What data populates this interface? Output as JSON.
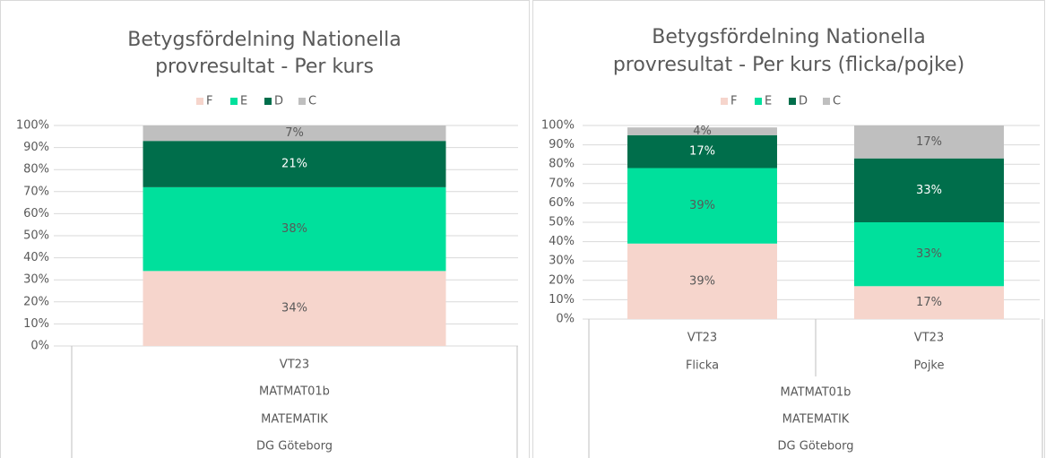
{
  "chart_data": [
    {
      "type": "bar",
      "stacked": true,
      "title": [
        "Betygsfördelning Nationella",
        "provresultat - Per kurs"
      ],
      "categories": [
        "VT23"
      ],
      "group_labels": [
        "MATMAT01b",
        "MATEMATIK",
        "DG Göteborg"
      ],
      "series": [
        {
          "name": "F",
          "color": "#f6d5cc",
          "values": [
            34
          ],
          "value_labels": [
            "34%"
          ]
        },
        {
          "name": "E",
          "color": "#00e09c",
          "values": [
            38
          ],
          "value_labels": [
            "38%"
          ]
        },
        {
          "name": "D",
          "color": "#006e4b",
          "values": [
            21
          ],
          "value_labels": [
            "21%"
          ]
        },
        {
          "name": "C",
          "color": "#bfbfbf",
          "values": [
            7
          ],
          "value_labels": [
            "7%"
          ]
        }
      ],
      "ylim": [
        0,
        100
      ],
      "yticks": [
        {
          "value": 0,
          "label": "0%"
        },
        {
          "value": 10,
          "label": "10%"
        },
        {
          "value": 20,
          "label": "20%"
        },
        {
          "value": 30,
          "label": "30%"
        },
        {
          "value": 40,
          "label": "40%"
        },
        {
          "value": 50,
          "label": "50%"
        },
        {
          "value": 60,
          "label": "60%"
        },
        {
          "value": 70,
          "label": "70%"
        },
        {
          "value": 80,
          "label": "80%"
        },
        {
          "value": 90,
          "label": "90%"
        },
        {
          "value": 100,
          "label": "100%"
        }
      ],
      "grid": true,
      "legend": "top"
    },
    {
      "type": "bar",
      "stacked": true,
      "title": [
        "Betygsfördelning Nationella",
        "provresultat - Per kurs (flicka/pojke)"
      ],
      "categories": [
        "Flicka",
        "Pojke"
      ],
      "category_periods": [
        "VT23",
        "VT23"
      ],
      "group_labels": [
        "MATMAT01b",
        "MATEMATIK",
        "DG Göteborg"
      ],
      "series": [
        {
          "name": "F",
          "color": "#f6d5cc",
          "values": [
            39,
            17
          ],
          "value_labels": [
            "39%",
            "17%"
          ]
        },
        {
          "name": "E",
          "color": "#00e09c",
          "values": [
            39,
            33
          ],
          "value_labels": [
            "39%",
            "33%"
          ]
        },
        {
          "name": "D",
          "color": "#006e4b",
          "values": [
            17,
            33
          ],
          "value_labels": [
            "17%",
            "33%"
          ]
        },
        {
          "name": "C",
          "color": "#bfbfbf",
          "values": [
            4,
            17
          ],
          "value_labels": [
            "4%",
            "17%"
          ]
        }
      ],
      "ylim": [
        0,
        100
      ],
      "yticks": [
        {
          "value": 0,
          "label": "0%"
        },
        {
          "value": 10,
          "label": "10%"
        },
        {
          "value": 20,
          "label": "20%"
        },
        {
          "value": 30,
          "label": "30%"
        },
        {
          "value": 40,
          "label": "40%"
        },
        {
          "value": 50,
          "label": "50%"
        },
        {
          "value": 60,
          "label": "60%"
        },
        {
          "value": 70,
          "label": "70%"
        },
        {
          "value": 80,
          "label": "80%"
        },
        {
          "value": 90,
          "label": "90%"
        },
        {
          "value": 100,
          "label": "100%"
        }
      ],
      "grid": true,
      "legend": "top"
    }
  ]
}
